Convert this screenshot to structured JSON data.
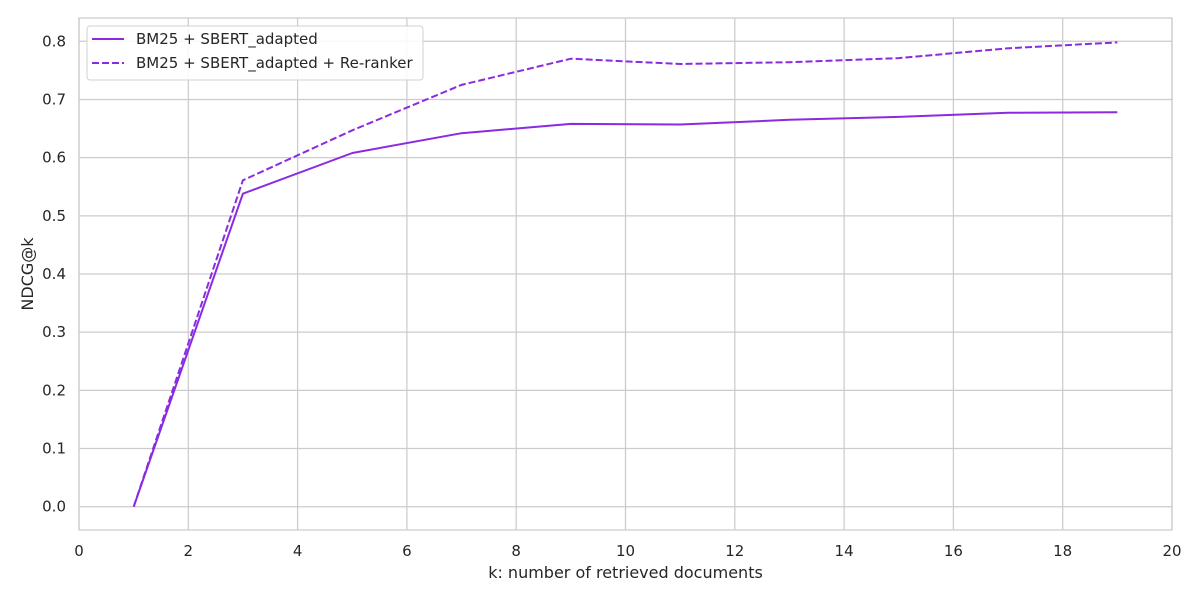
{
  "chart_data": {
    "type": "line",
    "title": "",
    "xlabel": "k: number of retrieved documents",
    "ylabel": "NDCG@k",
    "xlim": [
      0,
      20
    ],
    "ylim": [
      -0.04,
      0.84
    ],
    "xticks": [
      0,
      2,
      4,
      6,
      8,
      10,
      12,
      14,
      16,
      18,
      20
    ],
    "yticks": [
      0.0,
      0.1,
      0.2,
      0.3,
      0.4,
      0.5,
      0.6,
      0.7,
      0.8
    ],
    "grid": true,
    "legend": "top-left",
    "x": [
      1,
      3,
      5,
      7,
      9,
      11,
      13,
      15,
      17,
      19
    ],
    "series": [
      {
        "name": "BM25 + SBERT_adapted",
        "style": "solid",
        "color": "#8a2be2",
        "values": [
          0.0,
          0.538,
          0.608,
          0.642,
          0.658,
          0.657,
          0.665,
          0.67,
          0.677,
          0.678
        ]
      },
      {
        "name": "BM25 + SBERT_adapted + Re-ranker",
        "style": "dashed",
        "color": "#8a2be2",
        "values": [
          0.0,
          0.561,
          0.647,
          0.725,
          0.77,
          0.761,
          0.764,
          0.771,
          0.788,
          0.798
        ]
      }
    ]
  }
}
